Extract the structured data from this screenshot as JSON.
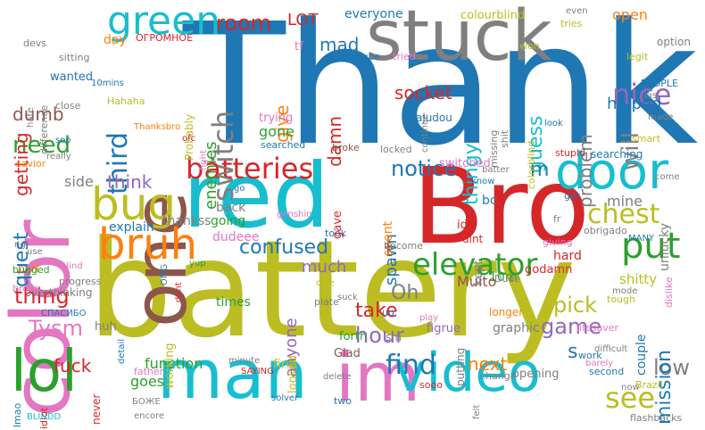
{
  "colors": {
    "blue": "#1f77b4",
    "orange": "#ff7f0e",
    "green": "#2ca02c",
    "red": "#d62728",
    "purple": "#9467bd",
    "brown": "#8c564b",
    "pink": "#e377c2",
    "gray": "#7f7f7f",
    "olive": "#bcbd22",
    "cyan": "#17becf"
  },
  "words": [
    {
      "text": "Thank",
      "color": "blue"
    },
    {
      "text": "battery",
      "color": "olive"
    },
    {
      "text": "Bro",
      "color": "red"
    },
    {
      "text": "red",
      "color": "cyan"
    },
    {
      "text": "stuck",
      "color": "gray"
    },
    {
      "text": "color",
      "color": "pink"
    },
    {
      "text": "one",
      "color": "brown"
    },
    {
      "text": "man",
      "color": "cyan"
    },
    {
      "text": "im",
      "color": "pink"
    },
    {
      "text": "video",
      "color": "cyan"
    },
    {
      "text": "lol",
      "color": "green"
    },
    {
      "text": "door",
      "color": "cyan"
    },
    {
      "text": "green",
      "color": "cyan"
    },
    {
      "text": "bug",
      "color": "olive"
    },
    {
      "text": "bruh",
      "color": "orange"
    },
    {
      "text": "put",
      "color": "green"
    },
    {
      "text": "elevator",
      "color": "green"
    },
    {
      "text": "batteries",
      "color": "red"
    },
    {
      "text": "chest",
      "color": "olive"
    },
    {
      "text": "room",
      "color": "red"
    },
    {
      "text": "LOT",
      "color": "red"
    },
    {
      "text": "nice",
      "color": "purple"
    },
    {
      "text": "switch",
      "color": "gray"
    },
    {
      "text": "third",
      "color": "blue"
    },
    {
      "text": "need",
      "color": "green"
    },
    {
      "text": "notice",
      "color": "blue"
    },
    {
      "text": "find",
      "color": "blue"
    },
    {
      "text": "see",
      "color": "olive"
    },
    {
      "text": "thing",
      "color": "red"
    },
    {
      "text": "Tysm",
      "color": "pink"
    },
    {
      "text": "fuck",
      "color": "red"
    },
    {
      "text": "game",
      "color": "purple"
    },
    {
      "text": "pick",
      "color": "olive"
    },
    {
      "text": "low",
      "color": "gray"
    },
    {
      "text": "hour",
      "color": "purple"
    },
    {
      "text": "take",
      "color": "red"
    },
    {
      "text": "Oh",
      "color": "gray"
    },
    {
      "text": "confused",
      "color": "blue"
    },
    {
      "text": "mission",
      "color": "blue"
    },
    {
      "text": "next",
      "color": "orange"
    },
    {
      "text": "think",
      "color": "purple"
    },
    {
      "text": "quest",
      "color": "blue"
    },
    {
      "text": "getting",
      "color": "red"
    },
    {
      "text": "dumb",
      "color": "brown"
    },
    {
      "text": "helped",
      "color": "blue"
    },
    {
      "text": "will",
      "color": "gray"
    },
    {
      "text": "problem",
      "color": "gray"
    },
    {
      "text": "guess",
      "color": "cyan"
    },
    {
      "text": "m",
      "color": "blue"
    },
    {
      "text": "thingy",
      "color": "cyan"
    },
    {
      "text": "socket",
      "color": "red"
    },
    {
      "text": "damn",
      "color": "red"
    },
    {
      "text": "give",
      "color": "orange"
    },
    {
      "text": "mad",
      "color": "blue"
    },
    {
      "text": "enemies",
      "color": "green"
    },
    {
      "text": "spawn",
      "color": "blue"
    },
    {
      "text": "much",
      "color": "purple"
    },
    {
      "text": "anyone",
      "color": "purple"
    },
    {
      "text": "function",
      "color": "green"
    },
    {
      "text": "goes",
      "color": "green"
    },
    {
      "text": "s",
      "color": "blue"
    },
    {
      "text": "t",
      "color": "brown"
    },
    {
      "text": "open",
      "color": "orange"
    },
    {
      "text": "gone",
      "color": "green"
    },
    {
      "text": "trying",
      "color": "pink"
    },
    {
      "text": "everyone",
      "color": "blue"
    },
    {
      "text": "colourblind",
      "color": "olive"
    },
    {
      "text": "Muito",
      "color": "brown"
    },
    {
      "text": "side",
      "color": "gray"
    },
    {
      "text": "explain",
      "color": "blue"
    },
    {
      "text": "first",
      "color": "olive"
    },
    {
      "text": "times",
      "color": "green"
    },
    {
      "text": "mine",
      "color": "gray"
    },
    {
      "text": "unlucky",
      "color": "gray"
    },
    {
      "text": "bc",
      "color": "blue"
    },
    {
      "text": "idk",
      "color": "red"
    },
    {
      "text": "10m",
      "color": "green"
    },
    {
      "text": "back",
      "color": "gray"
    },
    {
      "text": "going",
      "color": "green"
    },
    {
      "text": "dudeee",
      "color": "pink"
    },
    {
      "text": "thankss",
      "color": "gray"
    },
    {
      "text": "graphic",
      "color": "gray"
    },
    {
      "text": "couple",
      "color": "blue"
    },
    {
      "text": "wanted",
      "color": "blue"
    },
    {
      "text": "day",
      "color": "orange"
    },
    {
      "text": "option",
      "color": "gray"
    },
    {
      "text": "tries",
      "color": "olive"
    },
    {
      "text": "even",
      "color": "gray"
    },
    {
      "text": "won",
      "color": "olive"
    },
    {
      "text": "legit",
      "color": "olive"
    },
    {
      "text": "tf",
      "color": "pink"
    },
    {
      "text": "youtube",
      "color": "blue"
    },
    {
      "text": "tried",
      "color": "pink"
    },
    {
      "text": "ОГРОМНОЕ",
      "color": "red"
    },
    {
      "text": "devs",
      "color": "gray"
    },
    {
      "text": "sitting",
      "color": "gray"
    },
    {
      "text": "difference",
      "color": "gray"
    },
    {
      "text": "hate",
      "color": "gray"
    },
    {
      "text": "close",
      "color": "gray"
    },
    {
      "text": "savior",
      "color": "orange"
    },
    {
      "text": "soo",
      "color": "blue"
    },
    {
      "text": "really",
      "color": "gray"
    },
    {
      "text": "10mins",
      "color": "blue"
    },
    {
      "text": "Hahaha",
      "color": "olive"
    },
    {
      "text": "Thanksbro",
      "color": "orange"
    },
    {
      "text": "Probably",
      "color": "olive"
    },
    {
      "text": "ofc",
      "color": "red"
    },
    {
      "text": "fight",
      "color": "pink"
    },
    {
      "text": "searched",
      "color": "blue"
    },
    {
      "text": "broke",
      "color": "brown"
    },
    {
      "text": "ajudou",
      "color": "blue"
    },
    {
      "text": "continue",
      "color": "gray"
    },
    {
      "text": "locked",
      "color": "gray"
    },
    {
      "text": "missing",
      "color": "gray"
    },
    {
      "text": "shit",
      "color": "gray"
    },
    {
      "text": "look",
      "color": "blue"
    },
    {
      "text": "colorblind",
      "color": "olive"
    },
    {
      "text": "PEOPLE",
      "color": "blue"
    },
    {
      "text": "last",
      "color": "gray"
    },
    {
      "text": "made",
      "color": "gray"
    },
    {
      "text": "smart",
      "color": "olive"
    },
    {
      "text": "stupid",
      "color": "red"
    },
    {
      "text": "searching",
      "color": "blue"
    },
    {
      "text": "come",
      "color": "gray"
    },
    {
      "text": "fr",
      "color": "gray"
    },
    {
      "text": "dislike",
      "color": "pink"
    },
    {
      "text": "MANY",
      "color": "blue"
    },
    {
      "text": "obrigado",
      "color": "gray"
    },
    {
      "text": "giving",
      "color": "pink"
    },
    {
      "text": "hard",
      "color": "red"
    },
    {
      "text": "godamn",
      "color": "red"
    },
    {
      "text": "shitty",
      "color": "olive"
    },
    {
      "text": "know",
      "color": "blue"
    },
    {
      "text": "batter",
      "color": "gray"
    },
    {
      "text": "switched",
      "color": "pink"
    },
    {
      "text": "got",
      "color": "blue"
    },
    {
      "text": "kept",
      "color": "gray"
    },
    {
      "text": "dint",
      "color": "red"
    },
    {
      "text": "spent",
      "color": "orange"
    },
    {
      "text": "become",
      "color": "gray"
    },
    {
      "text": "took",
      "color": "blue"
    },
    {
      "text": "gave",
      "color": "red"
    },
    {
      "text": "genshin",
      "color": "pink"
    },
    {
      "text": "go",
      "color": "blue"
    },
    {
      "text": "ngl",
      "color": "gray"
    },
    {
      "text": "part",
      "color": "orange"
    },
    {
      "text": "progress",
      "color": "gray"
    },
    {
      "text": "overthinking",
      "color": "gray"
    },
    {
      "text": "use",
      "color": "gray"
    },
    {
      "text": "bugged",
      "color": "green"
    },
    {
      "text": "blind",
      "color": "pink"
    },
    {
      "text": "brooo",
      "color": "pink"
    },
    {
      "text": "СПАСИБО",
      "color": "blue"
    },
    {
      "text": "huh",
      "color": "gray"
    },
    {
      "text": "working",
      "color": "olive"
    },
    {
      "text": "OMG",
      "color": "blue"
    },
    {
      "text": "yup",
      "color": "green"
    },
    {
      "text": "dont",
      "color": "red"
    },
    {
      "text": "looked",
      "color": "olive"
    },
    {
      "text": "clue",
      "color": "olive"
    },
    {
      "text": "plate",
      "color": "gray"
    },
    {
      "text": "Dude",
      "color": "gray"
    },
    {
      "text": "suck",
      "color": "gray"
    },
    {
      "text": "uo",
      "color": "blue"
    },
    {
      "text": "play",
      "color": "pink"
    },
    {
      "text": "figrue",
      "color": "purple"
    },
    {
      "text": "forth",
      "color": "green"
    },
    {
      "text": "putting",
      "color": "gray"
    },
    {
      "text": "mode",
      "color": "gray"
    },
    {
      "text": "tough",
      "color": "olive"
    },
    {
      "text": "lifesaver",
      "color": "pink"
    },
    {
      "text": "difficult",
      "color": "gray"
    },
    {
      "text": "minute",
      "color": "gray"
    },
    {
      "text": "SAYING",
      "color": "red"
    },
    {
      "text": "detail",
      "color": "blue"
    },
    {
      "text": "Glad",
      "color": "brown"
    },
    {
      "text": "sm",
      "color": "gray"
    },
    {
      "text": "delete",
      "color": "gray"
    },
    {
      "text": "change",
      "color": "gray"
    },
    {
      "text": "longer",
      "color": "orange"
    },
    {
      "text": "opening",
      "color": "gray"
    },
    {
      "text": "work",
      "color": "blue"
    },
    {
      "text": "barely",
      "color": "pink"
    },
    {
      "text": "second",
      "color": "blue"
    },
    {
      "text": "now",
      "color": "gray"
    },
    {
      "text": "Brazil",
      "color": "olive"
    },
    {
      "text": "felt",
      "color": "gray"
    },
    {
      "text": "sooo",
      "color": "red"
    },
    {
      "text": "two",
      "color": "blue"
    },
    {
      "text": "flashbacks",
      "color": "gray"
    },
    {
      "text": "solver",
      "color": "blue"
    },
    {
      "text": "father",
      "color": "pink"
    },
    {
      "text": "БОЖЕ",
      "color": "gray"
    },
    {
      "text": "encore",
      "color": "gray"
    },
    {
      "text": "never",
      "color": "red"
    },
    {
      "text": "idiot",
      "color": "red"
    },
    {
      "text": "lmao",
      "color": "blue"
    },
    {
      "text": "BLINDD",
      "color": "cyan"
    }
  ]
}
